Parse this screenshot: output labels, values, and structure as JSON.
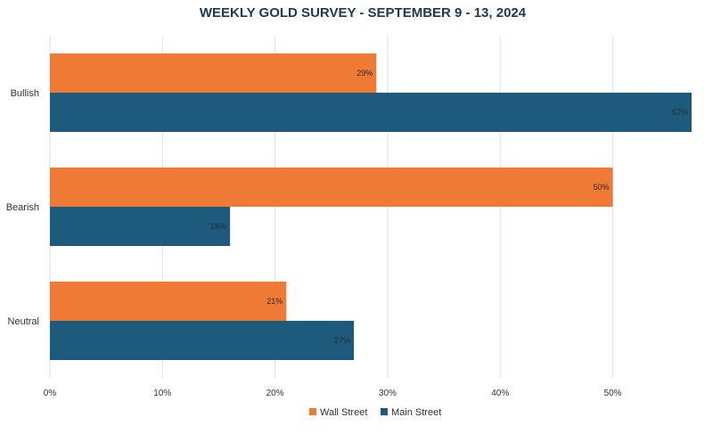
{
  "chart_data": {
    "type": "bar",
    "orientation": "horizontal",
    "title": "WEEKLY GOLD SURVEY - SEPTEMBER 9 - 13, 2024",
    "categories": [
      "Bullish",
      "Bearish",
      "Neutral"
    ],
    "series": [
      {
        "name": "Wall Street",
        "values": [
          29,
          50,
          21
        ],
        "color": "#ef7a35"
      },
      {
        "name": "Main Street",
        "values": [
          57,
          16,
          27
        ],
        "color": "#1d5a7c"
      }
    ],
    "x_ticks": [
      "0%",
      "10%",
      "20%",
      "30%",
      "40%",
      "50%"
    ],
    "xlim": [
      0,
      57
    ],
    "value_suffix": "%",
    "grid": true,
    "legend": "bottom-center"
  }
}
